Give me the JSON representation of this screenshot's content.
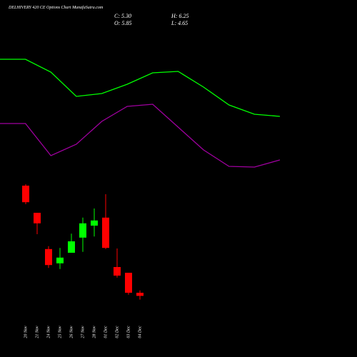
{
  "chart_data": [
    {
      "type": "candlestick",
      "title": "DELHIVERY 420  CE Options Chart MunafaSutra.com",
      "info": [
        "C: 5.30",
        "O: 5.85",
        "H: 6.25",
        "L: 4.65"
      ],
      "categories": [
        "20 Nov",
        "21 Nov",
        "24 Nov",
        "25 Nov",
        "26 Nov",
        "27 Nov",
        "28 Nov",
        "01 Dec",
        "02 Dec",
        "03 Dec",
        "04 Dec"
      ],
      "open": [
        24.6,
        19.85,
        13.5,
        11.0,
        12.85,
        15.5,
        17.6,
        19.0,
        10.35,
        9.35,
        5.85
      ],
      "high": [
        24.85,
        19.85,
        14.0,
        13.7,
        16.2,
        19.0,
        20.6,
        23.1,
        13.6,
        9.35,
        6.25
      ],
      "low": [
        21.35,
        16.1,
        10.2,
        10.0,
        12.85,
        13.0,
        15.7,
        13.5,
        8.5,
        5.5,
        4.65
      ],
      "close": [
        21.7,
        18.0,
        10.7,
        12.0,
        14.85,
        18.0,
        18.5,
        13.7,
        8.85,
        5.85,
        5.3
      ],
      "up_color": "#00ff00",
      "down_color": "#ff0000",
      "ylim": [
        3.35,
        27.1
      ]
    },
    {
      "type": "line",
      "categories": [
        null,
        null,
        null,
        null,
        null,
        null,
        null,
        null,
        null,
        null,
        null,
        null
      ],
      "series": [
        {
          "color": "#00ff00",
          "values": [
            88.5,
            88.5,
            79.5,
            62.5,
            64.5,
            71,
            79,
            80,
            69,
            56.5,
            50,
            48.5
          ]
        },
        {
          "color": "#a000a0",
          "values": [
            43.5,
            43.5,
            21,
            29,
            45,
            55.5,
            57,
            41,
            25,
            13.5,
            13,
            18
          ]
        }
      ],
      "ylim": [
        0,
        100
      ]
    }
  ]
}
